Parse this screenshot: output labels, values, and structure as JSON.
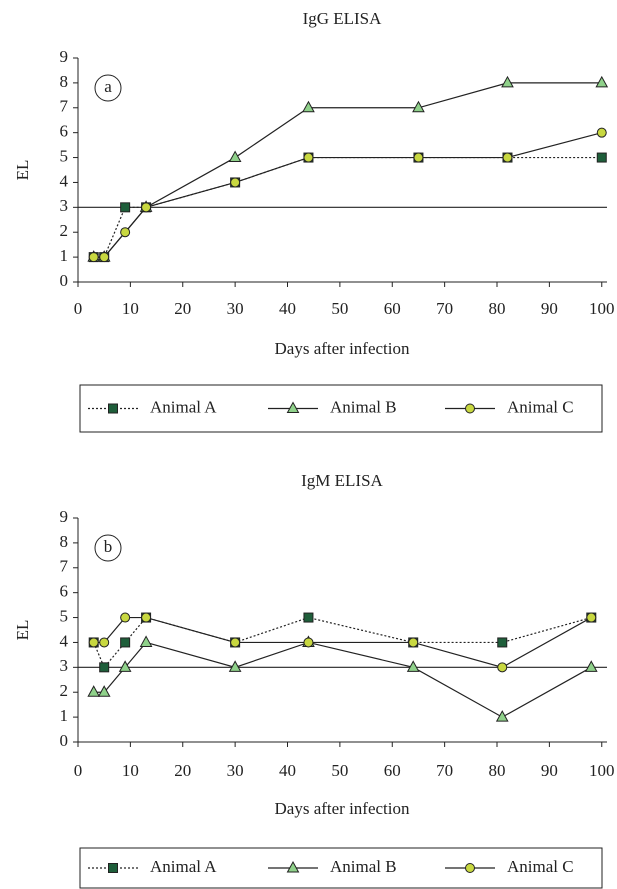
{
  "chart_data": [
    {
      "type": "line",
      "title": "IgG ELISA",
      "panel_label": "a",
      "y_label": "EL",
      "x_label": "Days after infection",
      "xlim": [
        0,
        101
      ],
      "ylim": [
        0,
        9
      ],
      "xticks": [
        0,
        10,
        20,
        30,
        40,
        50,
        60,
        70,
        80,
        90,
        100
      ],
      "yticks": [
        0,
        1,
        2,
        3,
        4,
        5,
        6,
        7,
        8,
        9
      ],
      "threshold": 3,
      "series": [
        {
          "name": "Animal A",
          "color": "#1e5e3a",
          "marker": "square",
          "linestyle": "dotted",
          "x": [
            3,
            5,
            9,
            13,
            30,
            44,
            65,
            82,
            100
          ],
          "values": [
            1,
            1,
            3,
            3,
            4,
            5,
            5,
            5,
            5
          ]
        },
        {
          "name": "Animal B",
          "color": "#8fd18a",
          "marker": "triangle",
          "linestyle": "solid",
          "x": [
            3,
            5,
            13,
            30,
            44,
            65,
            82,
            100
          ],
          "values": [
            1,
            1,
            3,
            5,
            7,
            7,
            8,
            8
          ]
        },
        {
          "name": "Animal C",
          "color": "#c8d840",
          "marker": "circle",
          "linestyle": "solid",
          "x": [
            3,
            5,
            9,
            13,
            30,
            44,
            65,
            82,
            100
          ],
          "values": [
            1,
            1,
            2,
            3,
            4,
            5,
            5,
            5,
            6
          ]
        }
      ]
    },
    {
      "type": "line",
      "title": "IgM ELISA",
      "panel_label": "b",
      "y_label": "EL",
      "x_label": "Days after infection",
      "xlim": [
        0,
        101
      ],
      "ylim": [
        0,
        9
      ],
      "xticks": [
        0,
        10,
        20,
        30,
        40,
        50,
        60,
        70,
        80,
        90,
        100
      ],
      "yticks": [
        0,
        1,
        2,
        3,
        4,
        5,
        6,
        7,
        8,
        9
      ],
      "threshold": 3,
      "series": [
        {
          "name": "Animal A",
          "color": "#1e5e3a",
          "marker": "square",
          "linestyle": "dotted",
          "x": [
            3,
            5,
            9,
            13,
            30,
            44,
            64,
            81,
            98
          ],
          "values": [
            4,
            3,
            4,
            5,
            4,
            5,
            4,
            4,
            5
          ]
        },
        {
          "name": "Animal B",
          "color": "#8fd18a",
          "marker": "triangle",
          "linestyle": "solid",
          "x": [
            3,
            5,
            9,
            13,
            30,
            44,
            64,
            81,
            98
          ],
          "values": [
            2,
            2,
            3,
            4,
            3,
            4,
            3,
            1,
            3
          ]
        },
        {
          "name": "Animal C",
          "color": "#c8d840",
          "marker": "circle",
          "linestyle": "solid",
          "x": [
            3,
            5,
            9,
            13,
            30,
            44,
            64,
            81,
            98
          ],
          "values": [
            4,
            4,
            5,
            5,
            4,
            4,
            4,
            3,
            5
          ]
        }
      ]
    }
  ]
}
